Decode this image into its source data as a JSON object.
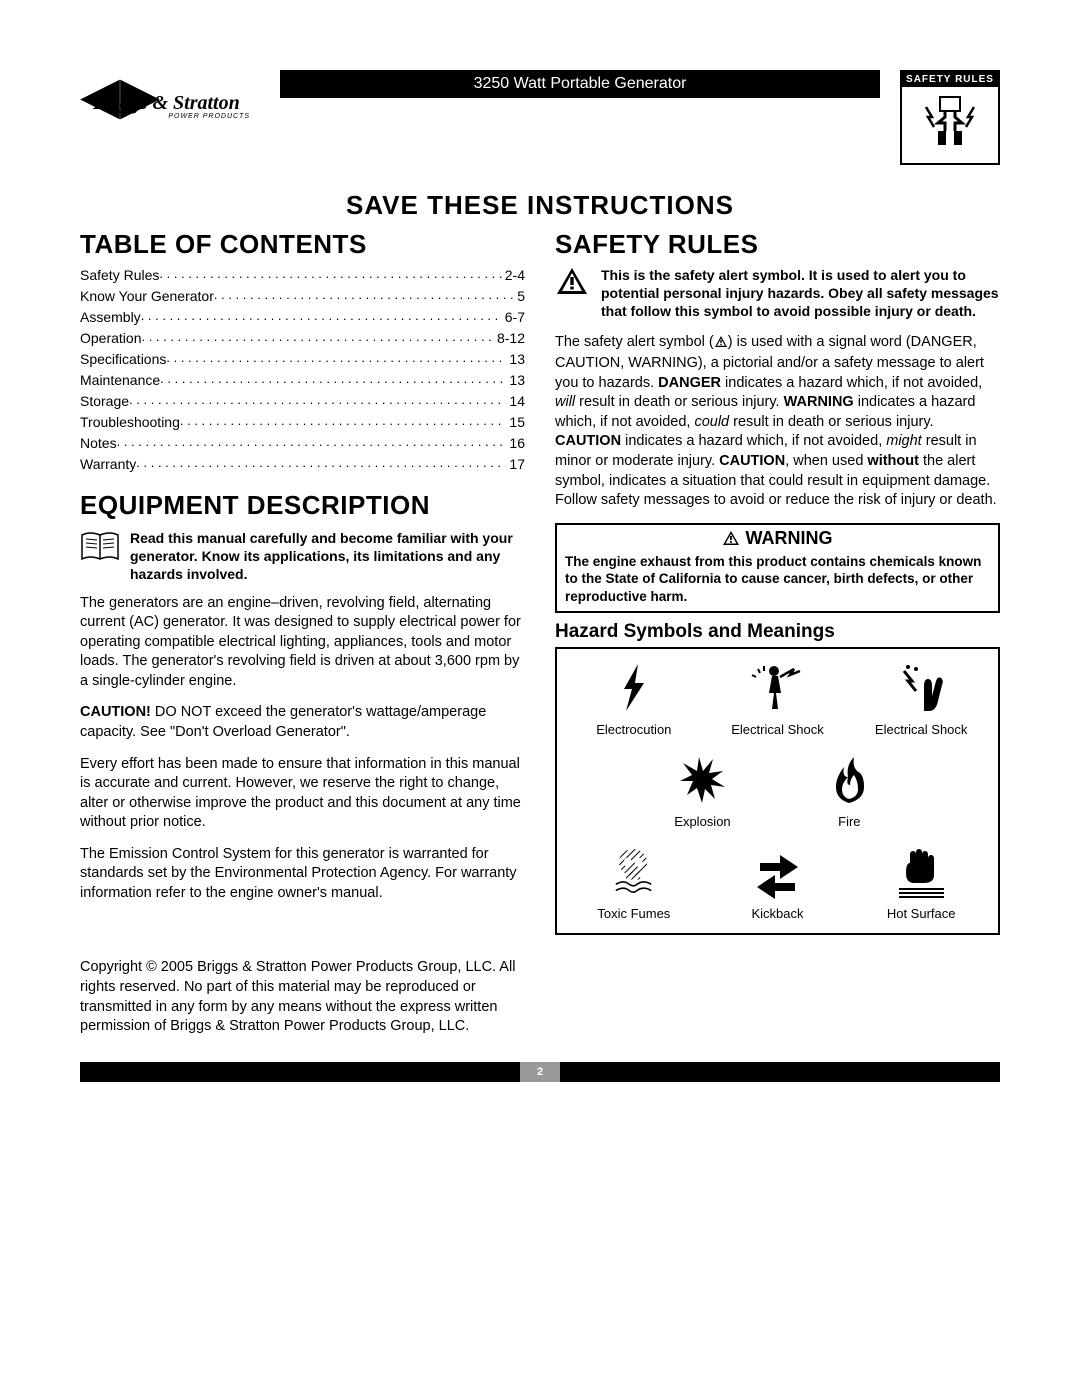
{
  "header": {
    "brand": "Briggs & Stratton",
    "brand_sub": "POWER PRODUCTS",
    "title_bar": "3250 Watt Portable Generator",
    "safety_badge": "SAFETY RULES"
  },
  "save_instructions": "SAVE THESE INSTRUCTIONS",
  "toc": {
    "heading": "TABLE OF CONTENTS",
    "items": [
      {
        "label": "Safety Rules",
        "page": "2-4"
      },
      {
        "label": "Know Your Generator",
        "page": "5"
      },
      {
        "label": "Assembly",
        "page": "6-7"
      },
      {
        "label": "Operation",
        "page": "8-12"
      },
      {
        "label": "Specifications",
        "page": "13"
      },
      {
        "label": "Maintenance",
        "page": "13"
      },
      {
        "label": "Storage",
        "page": "14"
      },
      {
        "label": "Troubleshooting",
        "page": "15"
      },
      {
        "label": "Notes",
        "page": "16"
      },
      {
        "label": "Warranty",
        "page": "17"
      }
    ]
  },
  "equipment": {
    "heading": "EQUIPMENT DESCRIPTION",
    "read_manual": "Read this manual carefully and become familiar with your generator. Know its applications, its limitations and any hazards involved.",
    "para1": "The generators are an engine–driven, revolving field, alternating current (AC) generator. It was designed to supply electrical power for operating compatible electrical lighting, appliances, tools and motor loads. The generator's revolving field is driven at about 3,600 rpm by a single-cylinder engine.",
    "caution_label": "CAUTION!",
    "caution_text": " DO NOT exceed the generator's wattage/amperage capacity. See \"Don't Overload Generator\".",
    "para3": "Every effort has been made to ensure that information in this manual is accurate and current. However, we reserve the right to change, alter or otherwise improve the product and this document at any time without prior notice.",
    "para4": "The Emission Control System for this generator is warranted for standards set by the Environmental Protection Agency. For warranty information refer to the engine owner's manual."
  },
  "safety": {
    "heading": "SAFETY RULES",
    "alert_text": "This is the safety alert symbol. It is used to alert you to potential personal injury hazards. Obey all safety messages that follow this symbol to avoid possible injury or death.",
    "signal_pre": "The safety alert symbol (",
    "signal_post": ") is used with a signal word (DANGER, CAUTION, WARNING), a pictorial and/or a safety message to alert you to hazards. ",
    "danger_label": "DANGER",
    "danger_text": " indicates a hazard which, if not avoided, ",
    "will": "will",
    "danger_text2": " result in death or serious injury. ",
    "warning_label": "WARNING",
    "warning_text": " indicates a hazard which, if not avoided, ",
    "could": "could",
    "warning_text2": " result in death or serious injury. ",
    "caution_label": "CAUTION",
    "caution_text": " indicates a hazard which, if not avoided, ",
    "might": "might",
    "caution_text2": " result in minor or moderate injury. ",
    "caution_label2": "CAUTION",
    "caution_noalert": ", when used ",
    "without": "without",
    "caution_noalert2": " the alert symbol, indicates a situation that could result in equipment damage. Follow safety messages to avoid or reduce the risk of injury or death.",
    "warning_box_head": "WARNING",
    "warning_box_body": "The engine exhaust from this product contains chemicals known to the State of California to cause cancer, birth defects, or other reproductive harm.",
    "hazard_heading": "Hazard Symbols and Meanings",
    "hazards": [
      {
        "label": "Electrocution"
      },
      {
        "label": "Electrical Shock"
      },
      {
        "label": "Electrical Shock"
      },
      {
        "label": "Explosion"
      },
      {
        "label": "Fire"
      },
      {
        "label": ""
      },
      {
        "label": "Toxic Fumes"
      },
      {
        "label": "Kickback"
      },
      {
        "label": "Hot Surface"
      }
    ]
  },
  "copyright": "Copyright © 2005 Briggs & Stratton Power Products Group, LLC.  All rights reserved.  No part of this material may be reproduced or transmitted in any form by any means without the express written permission of Briggs & Stratton Power Products Group, LLC.",
  "page_number": "2",
  "colors": {
    "black": "#000000",
    "white": "#ffffff",
    "footer_tab": "#999999"
  }
}
